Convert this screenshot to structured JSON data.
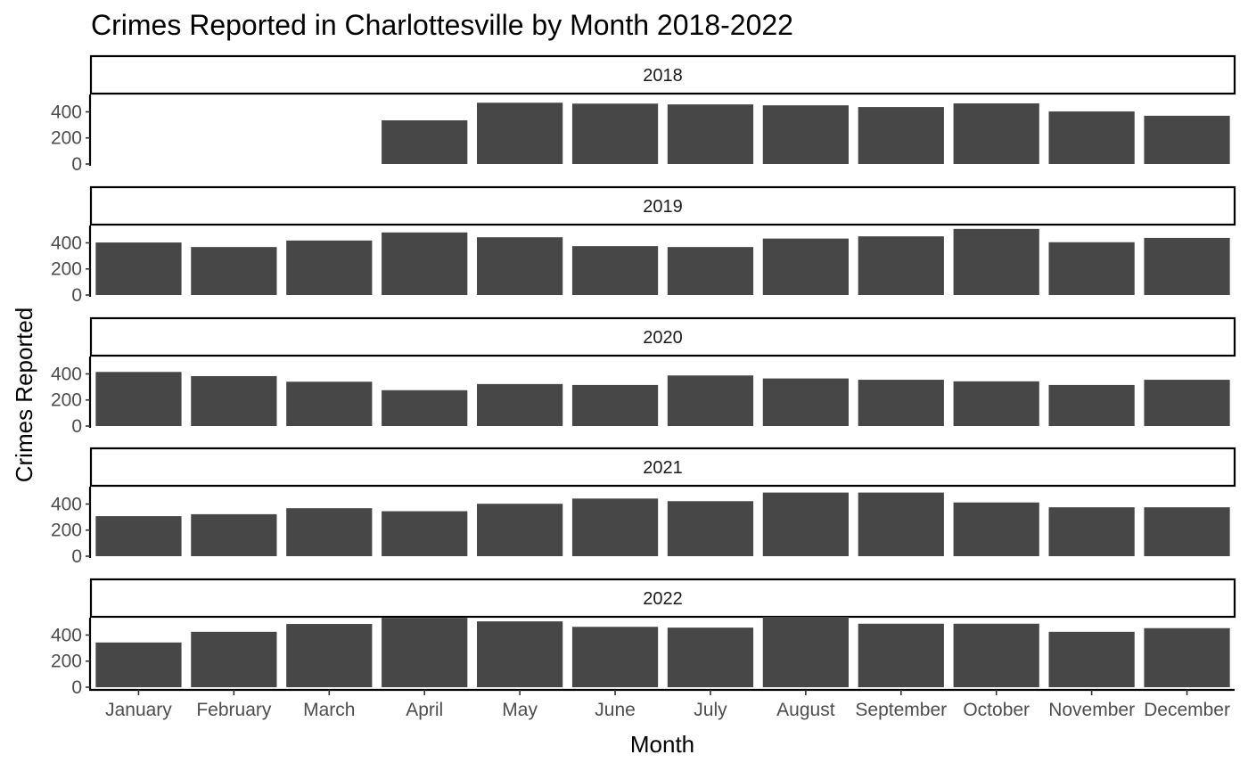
{
  "chart_data": {
    "type": "bar",
    "title": "Crimes Reported in Charlottesville by Month 2018-2022",
    "xlabel": "Month",
    "ylabel": "Crimes Reported",
    "categories": [
      "January",
      "February",
      "March",
      "April",
      "May",
      "June",
      "July",
      "August",
      "September",
      "October",
      "November",
      "December"
    ],
    "y_ticks": [
      0,
      200,
      400
    ],
    "ylim": [
      0,
      560
    ],
    "bar_color": "#474747",
    "facets": [
      {
        "label": "2018",
        "values": [
          null,
          null,
          null,
          335,
          470,
          463,
          457,
          450,
          437,
          465,
          403,
          370
        ]
      },
      {
        "label": "2019",
        "values": [
          403,
          368,
          418,
          480,
          443,
          375,
          368,
          433,
          450,
          507,
          405,
          438
        ]
      },
      {
        "label": "2020",
        "values": [
          415,
          383,
          340,
          275,
          322,
          315,
          388,
          365,
          355,
          343,
          315,
          355
        ]
      },
      {
        "label": "2021",
        "values": [
          307,
          322,
          368,
          345,
          402,
          442,
          422,
          488,
          488,
          412,
          375,
          375
        ]
      },
      {
        "label": "2022",
        "values": [
          343,
          425,
          485,
          532,
          505,
          463,
          457,
          540,
          487,
          487,
          425,
          453
        ]
      }
    ]
  }
}
